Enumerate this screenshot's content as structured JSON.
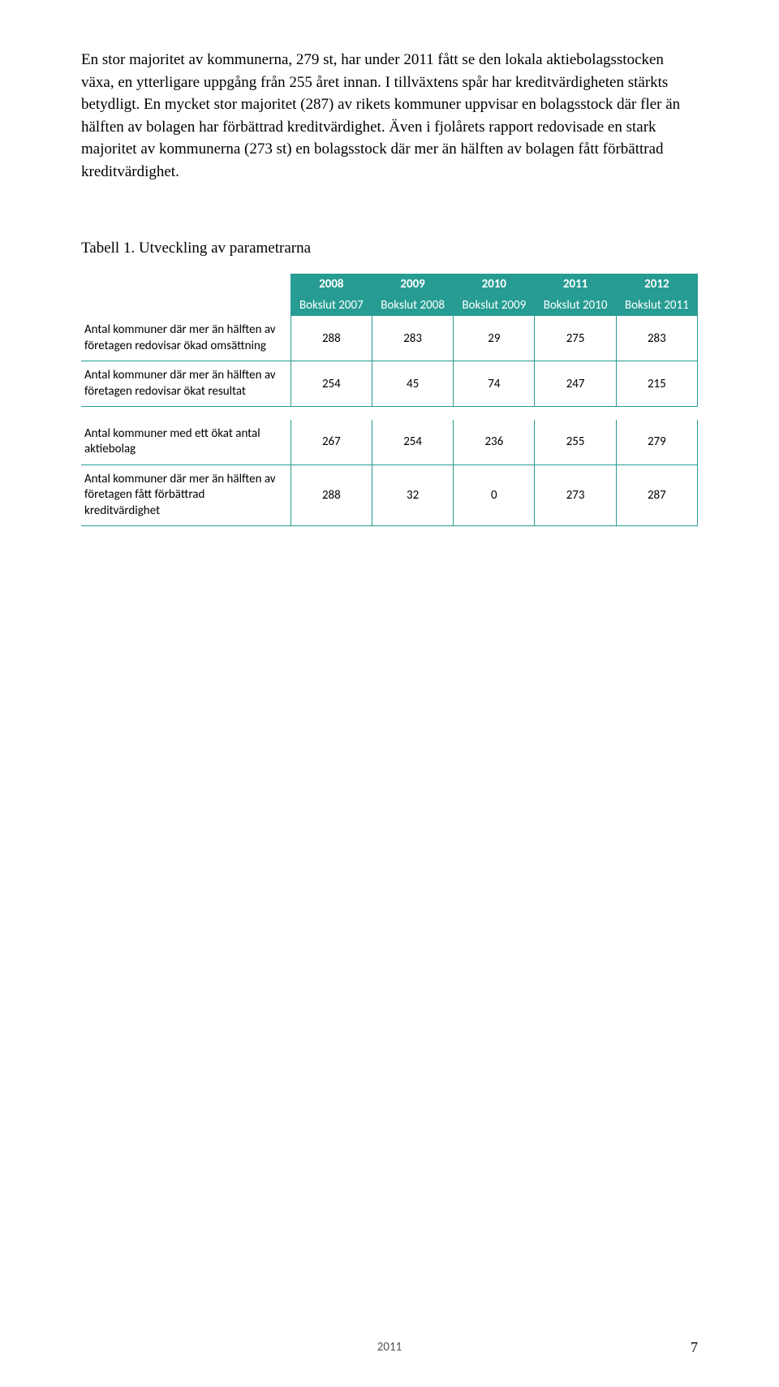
{
  "paragraph": "En stor majoritet av kommunerna, 279 st, har under 2011 fått se den lokala aktiebolagsstocken växa, en ytterligare uppgång från 255 året innan. I tillväxtens spår har kreditvärdigheten stärkts betydligt. En mycket stor majoritet (287) av rikets kommuner uppvisar en bolagsstock där fler än hälften av bolagen har förbättrad kreditvärdighet. Även i fjolårets rapport redovisade en stark majoritet av kommunerna (273 st) en bolagsstock där mer än hälften av bolagen fått förbättrad kreditvärdighet.",
  "table_title": "Tabell 1. Utveckling av parametrarna",
  "table": {
    "header_bg": "#269c92",
    "header_color": "#ffffff",
    "border_color": "#269c92",
    "years": [
      "2008",
      "2009",
      "2010",
      "2011",
      "2012"
    ],
    "subyears": [
      "Bokslut 2007",
      "Bokslut 2008",
      "Bokslut 2009",
      "Bokslut 2010",
      "Bokslut 2011"
    ],
    "rows": [
      {
        "label": "Antal kommuner där mer än hälften av företagen redovisar ökad omsättning",
        "values": [
          "288",
          "283",
          "29",
          "275",
          "283"
        ]
      },
      {
        "label": "Antal kommuner där mer än hälften av företagen redovisar ökat resultat",
        "values": [
          "254",
          "45",
          "74",
          "247",
          "215"
        ]
      },
      {
        "label": "Antal kommuner med ett ökat antal aktiebolag",
        "values": [
          "267",
          "254",
          "236",
          "255",
          "279"
        ]
      },
      {
        "label": "Antal kommuner där mer än hälften av företagen fått förbättrad kreditvärdighet",
        "values": [
          "288",
          "32",
          "0",
          "273",
          "287"
        ]
      }
    ]
  },
  "footer_year": "2011",
  "page_number": "7"
}
